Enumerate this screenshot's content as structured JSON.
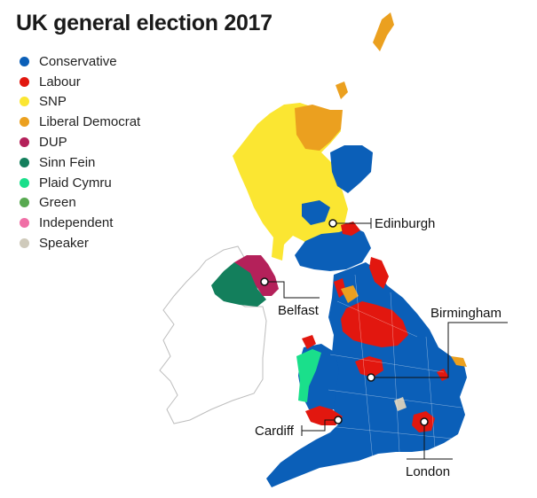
{
  "title": "UK general election 2017",
  "legend": [
    {
      "label": "Conservative",
      "color": "#0b5fb8"
    },
    {
      "label": "Labour",
      "color": "#e2170f"
    },
    {
      "label": "SNP",
      "color": "#fbe632"
    },
    {
      "label": "Liberal Democrat",
      "color": "#eba01f"
    },
    {
      "label": "DUP",
      "color": "#b4215a"
    },
    {
      "label": "Sinn Fein",
      "color": "#137f5c"
    },
    {
      "label": "Plaid Cymru",
      "color": "#1adf8b"
    },
    {
      "label": "Green",
      "color": "#58a950"
    },
    {
      "label": "Independent",
      "color": "#f06fa6"
    },
    {
      "label": "Speaker",
      "color": "#cfcabb"
    }
  ],
  "cities": {
    "edinburgh": "Edinburgh",
    "belfast": "Belfast",
    "birmingham": "Birmingham",
    "cardiff": "Cardiff",
    "london": "London"
  }
}
